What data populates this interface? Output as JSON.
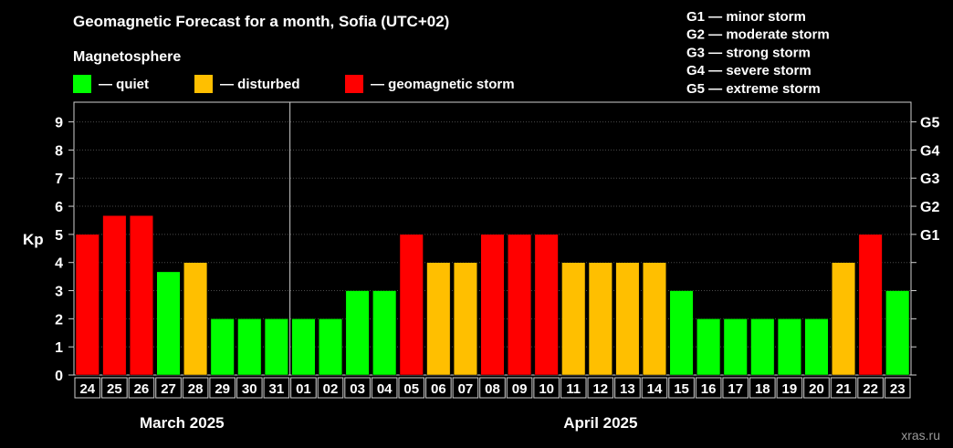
{
  "header": {
    "title": "Geomagnetic Forecast for a month, Sofia (UTC+02)",
    "subtitle": "Magnetosphere",
    "watermark": "xras.ru"
  },
  "legend": {
    "placement": "top-left",
    "items": [
      {
        "label": "— quiet",
        "color": "#00ff00"
      },
      {
        "label": "— disturbed",
        "color": "#ffbf00"
      },
      {
        "label": "— geomagnetic storm",
        "color": "#ff0000"
      }
    ]
  },
  "storm_scale": [
    {
      "level": "G1",
      "label": "G1 — minor storm",
      "kp": 5
    },
    {
      "level": "G2",
      "label": "G2 — moderate storm",
      "kp": 6
    },
    {
      "level": "G3",
      "label": "G3 — strong storm",
      "kp": 7
    },
    {
      "level": "G4",
      "label": "G4 — severe storm",
      "kp": 8
    },
    {
      "level": "G5",
      "label": "G5 — extreme storm",
      "kp": 9
    }
  ],
  "chart_data": {
    "type": "bar",
    "ylabel": "Kp",
    "ylim": [
      0,
      9.7
    ],
    "yticks": [
      0,
      1,
      2,
      3,
      4,
      5,
      6,
      7,
      8,
      9
    ],
    "grid": true,
    "categories": [
      "24",
      "25",
      "26",
      "27",
      "28",
      "29",
      "30",
      "31",
      "01",
      "02",
      "03",
      "04",
      "05",
      "06",
      "07",
      "08",
      "09",
      "10",
      "11",
      "12",
      "13",
      "14",
      "15",
      "16",
      "17",
      "18",
      "19",
      "20",
      "21",
      "22",
      "23"
    ],
    "values": [
      5,
      5.67,
      5.67,
      3.67,
      4,
      2,
      2,
      2,
      2,
      2,
      3,
      3,
      5,
      4,
      4,
      5,
      5,
      5,
      4,
      4,
      4,
      4,
      3,
      2,
      2,
      2,
      2,
      2,
      4,
      5,
      3
    ],
    "status": [
      "storm",
      "storm",
      "storm",
      "quiet",
      "disturbed",
      "quiet",
      "quiet",
      "quiet",
      "quiet",
      "quiet",
      "quiet",
      "quiet",
      "storm",
      "disturbed",
      "disturbed",
      "storm",
      "storm",
      "storm",
      "disturbed",
      "disturbed",
      "disturbed",
      "disturbed",
      "quiet",
      "quiet",
      "quiet",
      "quiet",
      "quiet",
      "quiet",
      "disturbed",
      "storm",
      "quiet"
    ],
    "status_colors": {
      "quiet": "#00ff00",
      "disturbed": "#ffbf00",
      "storm": "#ff0000"
    },
    "months": [
      {
        "label": "March 2025",
        "from": 0,
        "to": 7
      },
      {
        "label": "April 2025",
        "from": 8,
        "to": 30
      }
    ]
  }
}
